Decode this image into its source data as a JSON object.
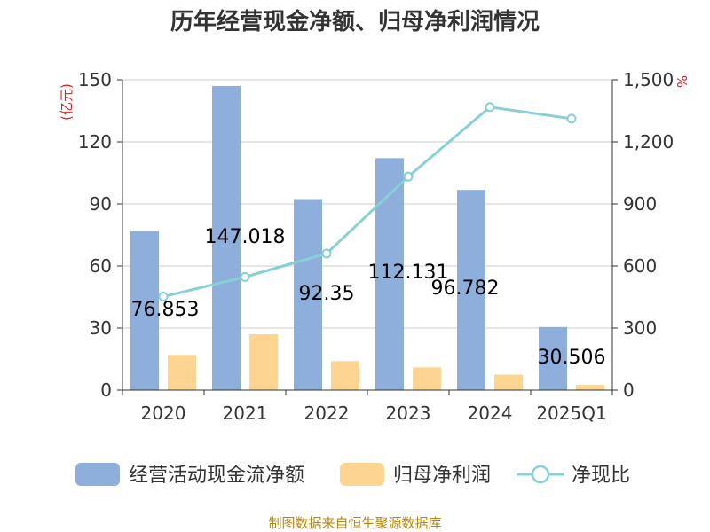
{
  "title": "历年经营现金净额、归母净利润情况",
  "source": "制图数据来自恒生聚源数据库",
  "colors": {
    "bar1": "#8eaedb",
    "bar2": "#fdd590",
    "line": "#86d0d6",
    "grid": "#cccccc",
    "axis": "#333333"
  },
  "chart_data": {
    "type": "bar",
    "categories": [
      "2020",
      "2021",
      "2022",
      "2023",
      "2024",
      "2025Q1"
    ],
    "y_left": {
      "unit": "(亿元)",
      "ticks": [
        "0",
        "30",
        "60",
        "90",
        "120",
        "150"
      ],
      "range": [
        0,
        150
      ]
    },
    "y_right": {
      "unit": "%",
      "ticks": [
        "0",
        "300",
        "600",
        "900",
        "1,200",
        "1,500"
      ],
      "range": [
        0,
        1500
      ]
    },
    "grid": true,
    "legend_position": "bottom",
    "series": [
      {
        "name": "经营活动现金流净额",
        "type": "bar",
        "axis": "left",
        "values": [
          76.853,
          147.018,
          92.35,
          112.131,
          96.782,
          30.506
        ],
        "labels": [
          "76.853",
          "147.018",
          "92.35",
          "112.131",
          "96.782",
          "30.506"
        ]
      },
      {
        "name": "归母净利润",
        "type": "bar",
        "axis": "left",
        "values": [
          17.0,
          27.0,
          14.0,
          11.0,
          7.5,
          2.5
        ]
      },
      {
        "name": "净现比",
        "type": "line",
        "axis": "right",
        "values": [
          452,
          547,
          660,
          1032,
          1368,
          1312
        ]
      }
    ]
  }
}
